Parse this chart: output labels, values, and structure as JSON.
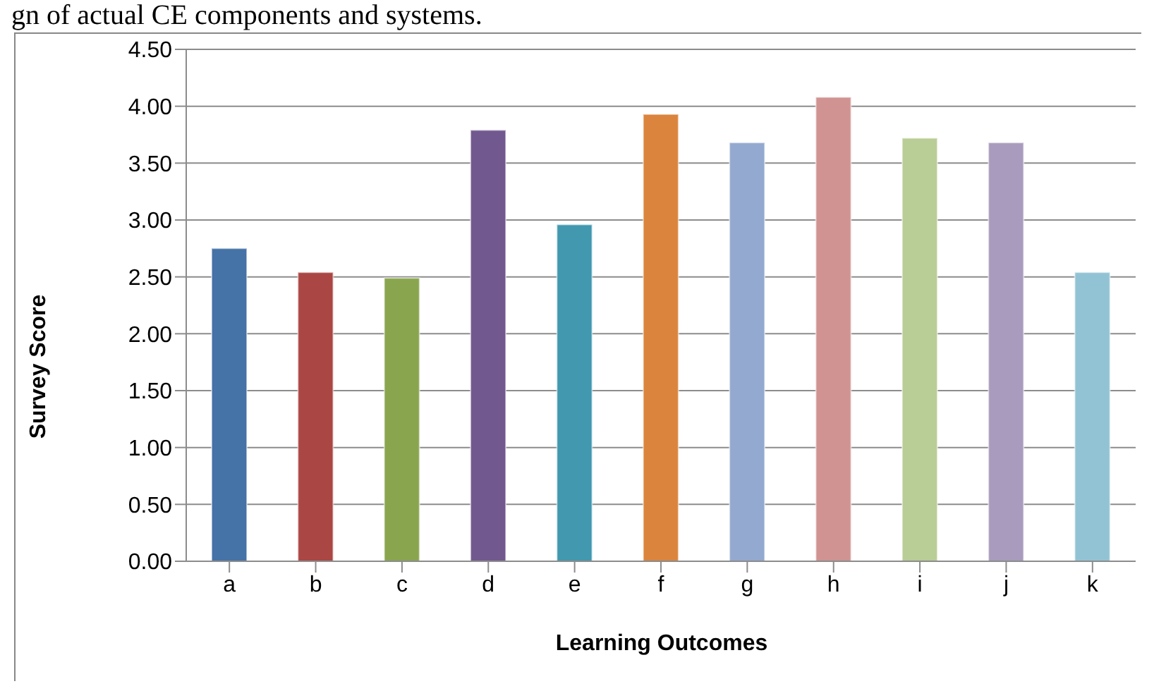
{
  "chart_data": {
    "type": "bar",
    "annotations": [
      "gn of actual CE components and systems."
    ],
    "xlabel": "Learning Outcomes",
    "ylabel": "Survey Score",
    "categories": [
      "a",
      "b",
      "c",
      "d",
      "e",
      "f",
      "g",
      "h",
      "i",
      "j",
      "k"
    ],
    "values": [
      2.75,
      2.54,
      2.49,
      3.79,
      2.96,
      3.93,
      3.68,
      4.08,
      3.72,
      3.68,
      2.54
    ],
    "colors": [
      "#4572a7",
      "#aa4643",
      "#89a54e",
      "#71588f",
      "#4198af",
      "#db843d",
      "#93a9cf",
      "#d19392",
      "#b9cd96",
      "#a99bbd",
      "#92c3d4"
    ],
    "ylim": [
      0,
      4.5
    ],
    "yticks": [
      {
        "value": 0,
        "label": "0.00"
      },
      {
        "value": 0.5,
        "label": "0.50"
      },
      {
        "value": 1,
        "label": "1.00"
      },
      {
        "value": 1.5,
        "label": "1.50"
      },
      {
        "value": 2,
        "label": "2.00"
      },
      {
        "value": 2.5,
        "label": "2.50"
      },
      {
        "value": 3,
        "label": "3.00"
      },
      {
        "value": 3.5,
        "label": "3.50"
      },
      {
        "value": 4,
        "label": "4.00"
      },
      {
        "value": 4.5,
        "label": "4.50"
      }
    ],
    "grid": "y"
  }
}
